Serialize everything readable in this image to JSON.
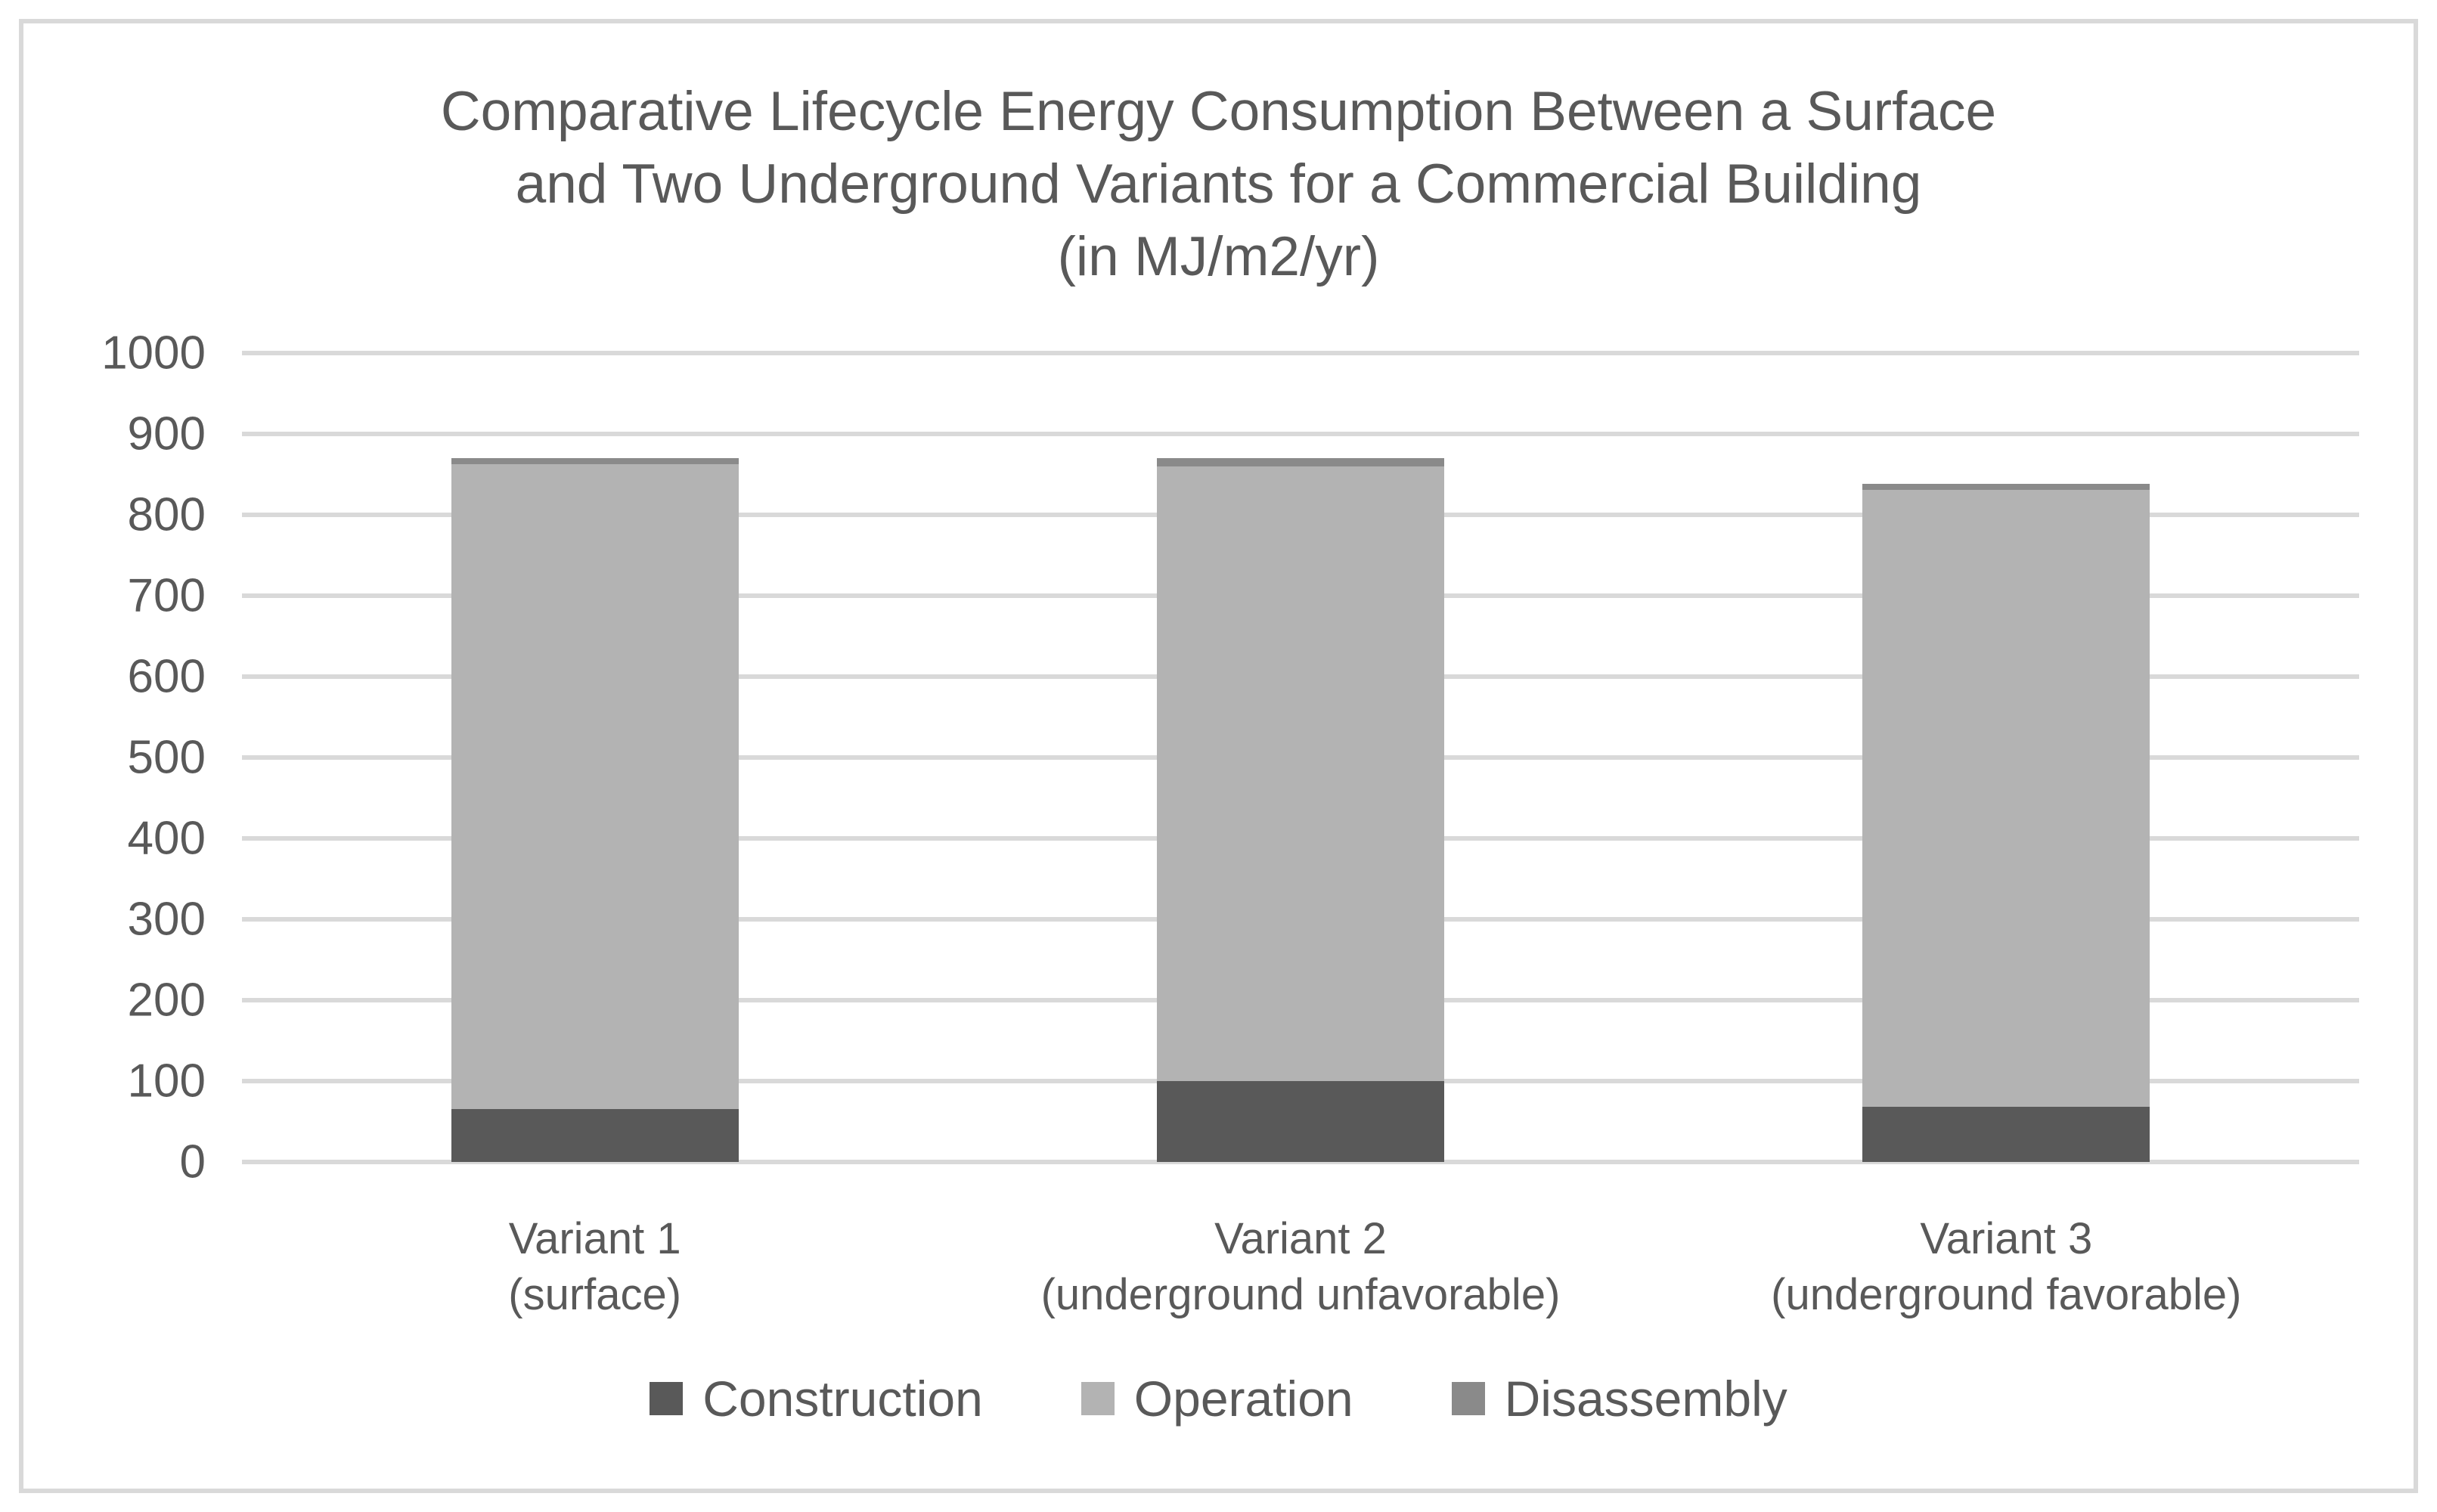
{
  "colors": {
    "background": "#ffffff",
    "frame_border": "#d9d9d9",
    "gridline": "#d9d9d9",
    "text": "#595959",
    "construction": "#595959",
    "operation": "#b3b3b3",
    "disassembly": "#8a8a8a"
  },
  "chart_data": {
    "type": "bar",
    "stacked": true,
    "title": "Comparative Lifecycle Energy Consumption Between a Surface and Two Underground Variants for a Commercial Building (in MJ/m2/yr)",
    "title_lines": [
      "Comparative Lifecycle Energy Consumption Between a Surface",
      "and Two Underground Variants for a Commercial Building",
      "(in MJ/m2/yr)"
    ],
    "unit": "MJ/m2/yr",
    "categories": [
      "Variant 1",
      "Variant 2",
      "Variant 3"
    ],
    "category_sublabels": [
      "(surface)",
      "(underground unfavorable)",
      "(underground favorable)"
    ],
    "series": [
      {
        "name": "Construction",
        "color": "#595959",
        "values": [
          65,
          100,
          68
        ]
      },
      {
        "name": "Operation",
        "color": "#b3b3b3",
        "values": [
          798,
          760,
          763
        ]
      },
      {
        "name": "Disassembly",
        "color": "#8a8a8a",
        "values": [
          7,
          10,
          7
        ]
      }
    ],
    "stack_totals": [
      870,
      870,
      838
    ],
    "ylim": [
      0,
      1000
    ],
    "ytick_step": 100,
    "yticks": [
      0,
      100,
      200,
      300,
      400,
      500,
      600,
      700,
      800,
      900,
      1000
    ],
    "grid": true,
    "legend_position": "bottom",
    "legend_labels": [
      "Construction",
      "Operation",
      "Disassembly"
    ]
  }
}
